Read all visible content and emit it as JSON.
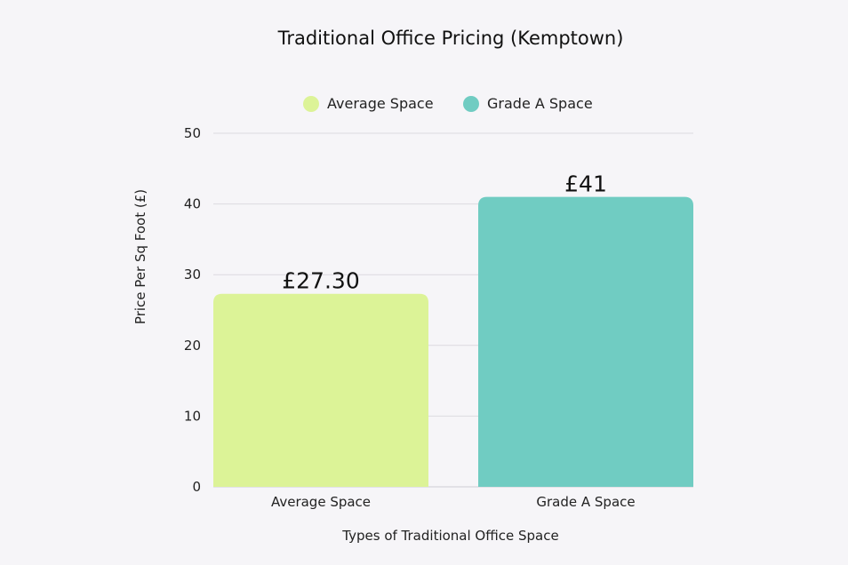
{
  "chart_data": {
    "type": "bar",
    "title": "Traditional Office Pricing (Kemptown)",
    "xlabel": "Types of Traditional Office Space",
    "ylabel": "Price Per Sq Foot (£)",
    "categories": [
      "Average Space",
      "Grade A Space"
    ],
    "values": [
      27.3,
      41
    ],
    "data_labels": [
      "£27.30",
      "£41"
    ],
    "colors": [
      "#dcf397",
      "#70ccc2"
    ],
    "legend": {
      "placement": "top-center",
      "entries": [
        {
          "label": "Average Space",
          "color": "#dcf397"
        },
        {
          "label": "Grade A Space",
          "color": "#70ccc2"
        }
      ]
    },
    "ylim": [
      0,
      50
    ],
    "yticks": [
      0,
      10,
      20,
      30,
      40,
      50
    ],
    "ytick_labels": [
      "0",
      "10",
      "20",
      "30",
      "40",
      "50"
    ],
    "grid": true
  }
}
